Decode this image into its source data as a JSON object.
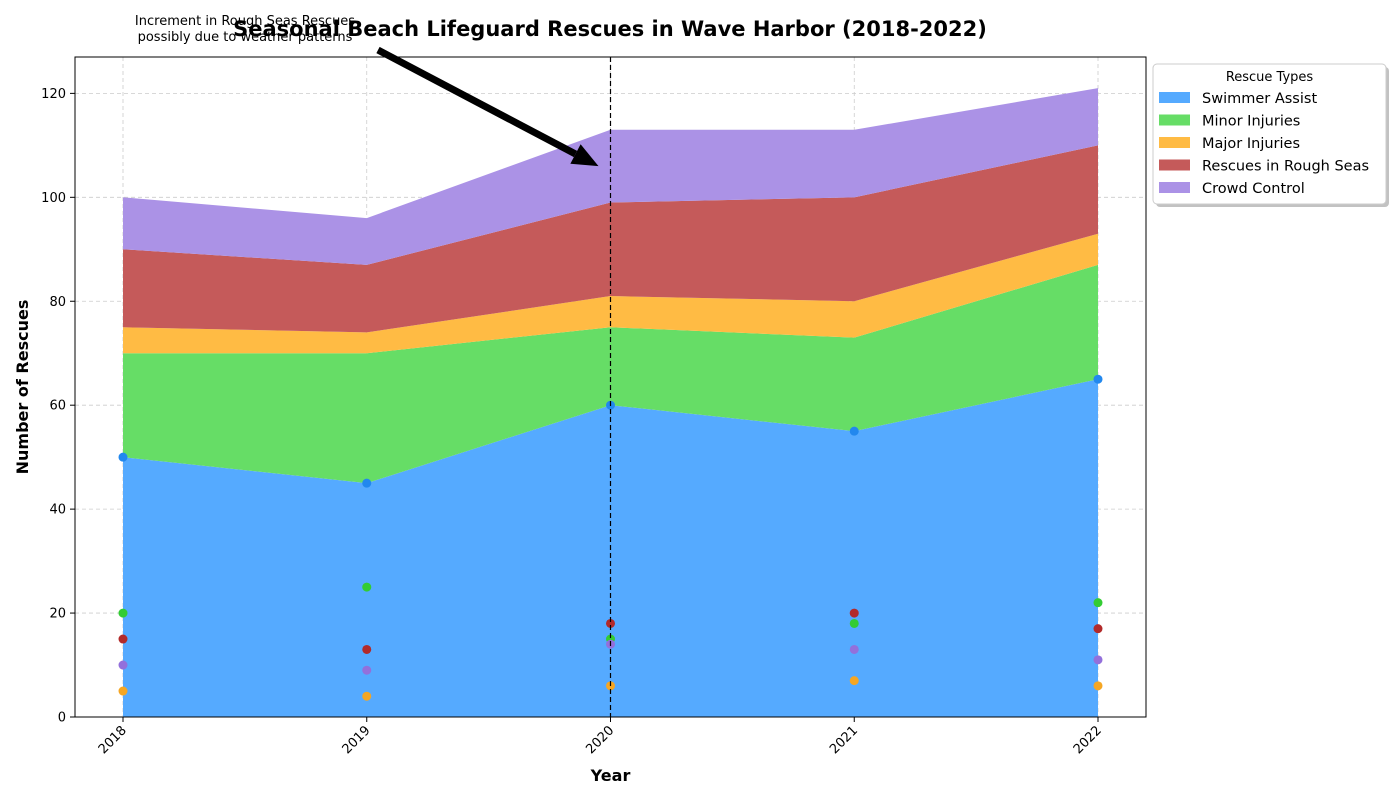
{
  "chart_data": {
    "type": "area",
    "stacked": true,
    "title": "Seasonal Beach Lifeguard Rescues in Wave Harbor (2018-2022)",
    "xlabel": "Year",
    "ylabel": "Number of Rescues",
    "x": [
      "2018",
      "2019",
      "2020",
      "2021",
      "2022"
    ],
    "ylim": [
      0,
      127
    ],
    "yticks": [
      0,
      20,
      40,
      60,
      80,
      100,
      120
    ],
    "grid": true,
    "legend_title": "Rescue Types",
    "legend_position": "outside-top-right",
    "series": [
      {
        "name": "Swimmer Assist",
        "values": [
          50,
          45,
          60,
          55,
          65
        ],
        "fill": "#55aaff",
        "marker": "#2288ee"
      },
      {
        "name": "Minor Injuries",
        "values": [
          20,
          25,
          15,
          18,
          22
        ],
        "fill": "#66dd66",
        "marker": "#33cc33"
      },
      {
        "name": "Major Injuries",
        "values": [
          5,
          4,
          6,
          7,
          6
        ],
        "fill": "#ffbb44",
        "marker": "#f5a623"
      },
      {
        "name": "Rescues in Rough Seas",
        "values": [
          15,
          13,
          18,
          20,
          17
        ],
        "fill": "#c55a5a",
        "marker": "#b22a2a"
      },
      {
        "name": "Crowd Control",
        "values": [
          10,
          9,
          14,
          13,
          11
        ],
        "fill": "#ab92e6",
        "marker": "#9370db"
      }
    ],
    "annotation": {
      "text_lines": [
        "Increment in Rough Seas Rescues",
        "possibly due to weather patterns"
      ],
      "target_x": "2020",
      "target_y": 106,
      "vline_x": "2020"
    }
  }
}
